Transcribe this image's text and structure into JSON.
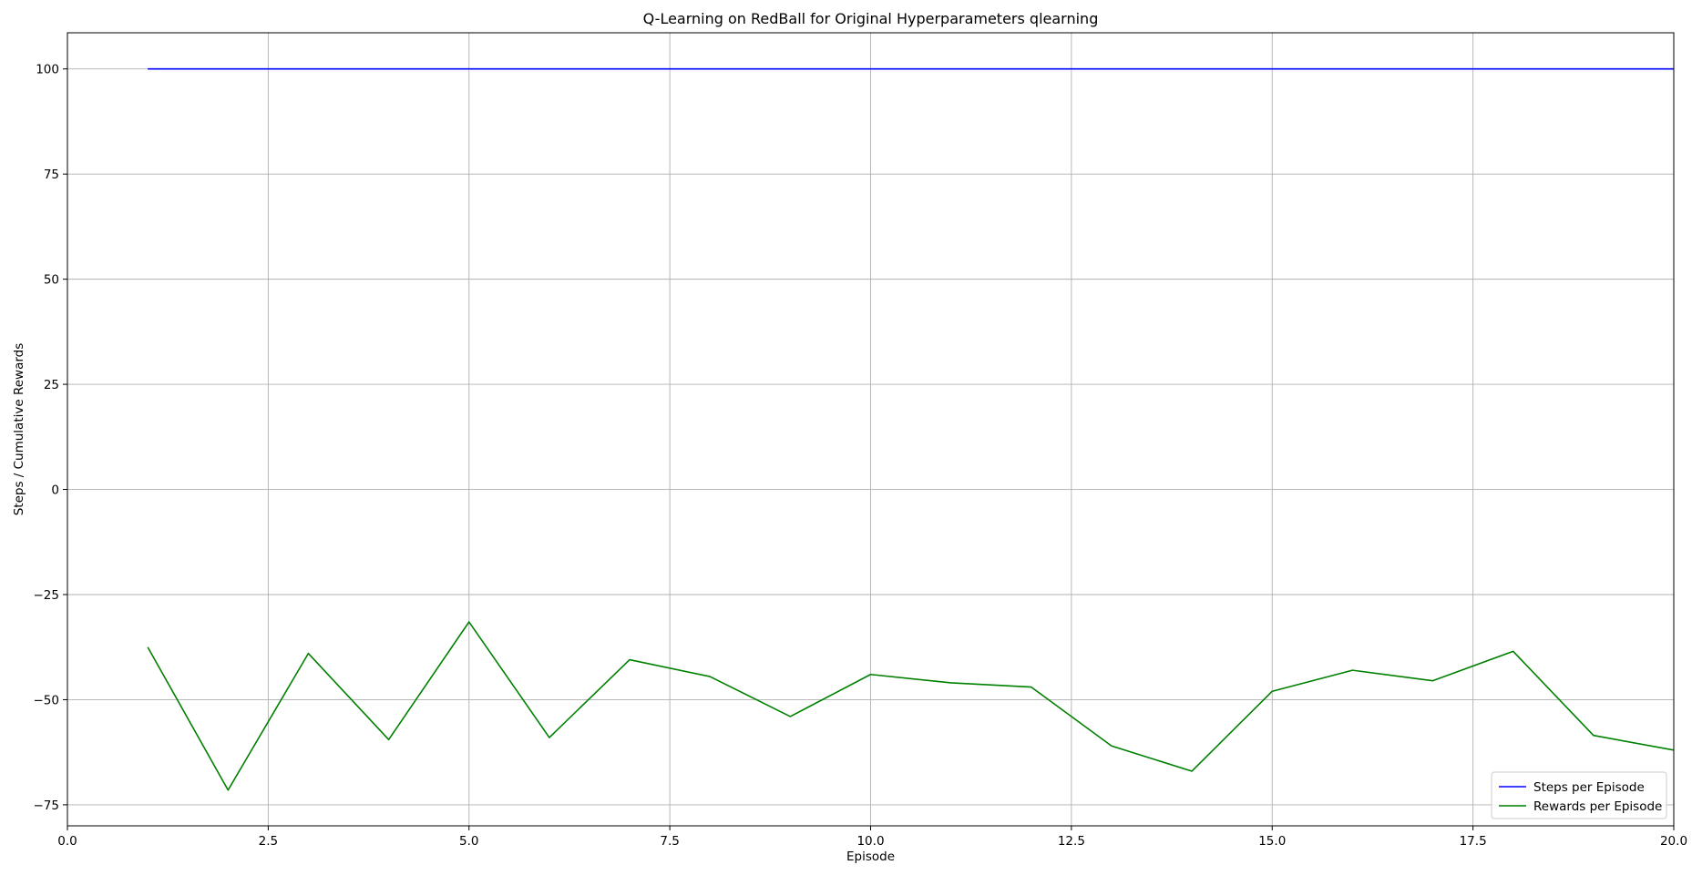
{
  "chart_data": {
    "type": "line",
    "title": "Q-Learning on RedBall for Original Hyperparameters qlearning",
    "xlabel": "Episode",
    "ylabel": "Steps / Cumulative Rewards",
    "xlim": [
      0.0,
      20.0
    ],
    "ylim": [
      -80,
      108.6
    ],
    "xticks": [
      0.0,
      2.5,
      5.0,
      7.5,
      10.0,
      12.5,
      15.0,
      17.5,
      20.0
    ],
    "xtick_labels": [
      "0.0",
      "2.5",
      "5.0",
      "7.5",
      "10.0",
      "12.5",
      "15.0",
      "17.5",
      "20.0"
    ],
    "yticks": [
      100,
      75,
      50,
      25,
      0,
      -25,
      -50,
      -75
    ],
    "ytick_labels": [
      "100",
      "75",
      "50",
      "25",
      "0",
      "−25",
      "−50",
      "−75"
    ],
    "grid": true,
    "legend_position": "bottom-right",
    "x": [
      1,
      2,
      3,
      4,
      5,
      6,
      7,
      8,
      9,
      10,
      11,
      12,
      13,
      14,
      15,
      16,
      17,
      18,
      19,
      20,
      21
    ],
    "series": [
      {
        "name": "Steps per Episode",
        "color": "#0000ff",
        "values": [
          100,
          100,
          100,
          100,
          100,
          100,
          100,
          100,
          100,
          100,
          100,
          100,
          100,
          100,
          100,
          100,
          100,
          100,
          100,
          100,
          100
        ]
      },
      {
        "name": "Rewards per Episode",
        "color": "#008000",
        "values": [
          -37.5,
          -71.5,
          -39.0,
          -59.5,
          -31.5,
          -59.0,
          -40.5,
          -44.5,
          -54.0,
          -44.0,
          -46.0,
          -47.0,
          -61.0,
          -67.0,
          -48.0,
          -43.0,
          -45.5,
          -38.5,
          -58.5,
          -62.0,
          -63.0
        ]
      }
    ]
  }
}
